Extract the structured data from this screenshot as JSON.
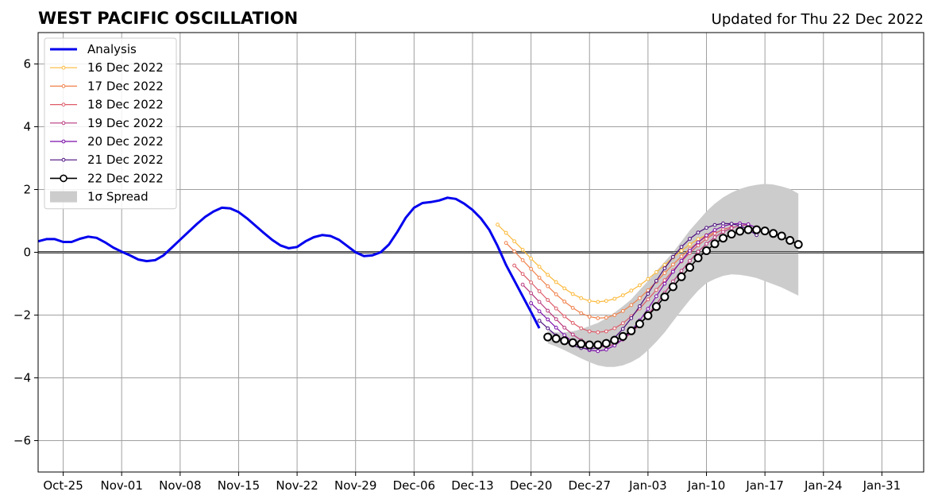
{
  "chart_data": {
    "type": "line",
    "title": "WEST PACIFIC OSCILLATION",
    "subtitle": "Updated for Thu 22 Dec 2022",
    "xlabel": "",
    "ylabel": "",
    "x_axis_type": "date",
    "xlim": [
      "2022-10-22",
      "2023-02-05"
    ],
    "ylim": [
      -7,
      7
    ],
    "y_ticks": [
      -6,
      -4,
      -2,
      0,
      2,
      4,
      6
    ],
    "x_ticks": [
      {
        "date": "2022-10-25",
        "label": "Oct-25"
      },
      {
        "date": "2022-11-01",
        "label": "Nov-01"
      },
      {
        "date": "2022-11-08",
        "label": "Nov-08"
      },
      {
        "date": "2022-11-15",
        "label": "Nov-15"
      },
      {
        "date": "2022-11-22",
        "label": "Nov-22"
      },
      {
        "date": "2022-11-29",
        "label": "Nov-29"
      },
      {
        "date": "2022-12-06",
        "label": "Dec-06"
      },
      {
        "date": "2022-12-13",
        "label": "Dec-13"
      },
      {
        "date": "2022-12-20",
        "label": "Dec-20"
      },
      {
        "date": "2022-12-27",
        "label": "Dec-27"
      },
      {
        "date": "2023-01-03",
        "label": "Jan-03"
      },
      {
        "date": "2023-01-10",
        "label": "Jan-10"
      },
      {
        "date": "2023-01-17",
        "label": "Jan-17"
      },
      {
        "date": "2023-01-24",
        "label": "Jan-24"
      },
      {
        "date": "2023-01-31",
        "label": "Jan-31"
      }
    ],
    "grid": true,
    "legend_position": "top-left",
    "series": [
      {
        "name": "Analysis",
        "color": "#0000ee",
        "kind": "analysis",
        "start": "2022-10-22",
        "values": [
          0.35,
          0.42,
          0.42,
          0.33,
          0.33,
          0.43,
          0.5,
          0.46,
          0.32,
          0.15,
          0.02,
          -0.1,
          -0.23,
          -0.28,
          -0.25,
          -0.1,
          0.15,
          0.4,
          0.65,
          0.9,
          1.13,
          1.3,
          1.42,
          1.4,
          1.28,
          1.08,
          0.85,
          0.62,
          0.4,
          0.22,
          0.13,
          0.17,
          0.35,
          0.48,
          0.55,
          0.52,
          0.4,
          0.2,
          0.0,
          -0.12,
          -0.1,
          0.0,
          0.25,
          0.65,
          1.1,
          1.42,
          1.57,
          1.6,
          1.65,
          1.74,
          1.7,
          1.55,
          1.35,
          1.08,
          0.72,
          0.2,
          -0.4,
          -0.9,
          -1.4,
          -1.9,
          -2.42
        ]
      },
      {
        "name": "16 Dec 2022",
        "color": "#fcb93a",
        "kind": "forecast",
        "start": "2022-12-16",
        "values": [
          0.88,
          0.62,
          0.35,
          0.08,
          -0.2,
          -0.46,
          -0.72,
          -0.95,
          -1.15,
          -1.33,
          -1.46,
          -1.55,
          -1.58,
          -1.55,
          -1.48,
          -1.37,
          -1.22,
          -1.05,
          -0.85,
          -0.63,
          -0.4,
          -0.17,
          0.05,
          0.25,
          0.42,
          0.55
        ]
      },
      {
        "name": "17 Dec 2022",
        "color": "#f0804a",
        "kind": "forecast",
        "start": "2022-12-17",
        "values": [
          0.3,
          0.03,
          -0.25,
          -0.53,
          -0.81,
          -1.08,
          -1.34,
          -1.57,
          -1.77,
          -1.94,
          -2.05,
          -2.1,
          -2.08,
          -2.0,
          -1.87,
          -1.68,
          -1.46,
          -1.21,
          -0.94,
          -0.66,
          -0.39,
          -0.13,
          0.11,
          0.32,
          0.5,
          0.64
        ]
      },
      {
        "name": "18 Dec 2022",
        "color": "#dc5a67",
        "kind": "forecast",
        "start": "2022-12-18",
        "values": [
          -0.42,
          -0.69,
          -0.96,
          -1.24,
          -1.52,
          -1.79,
          -2.04,
          -2.25,
          -2.42,
          -2.52,
          -2.55,
          -2.52,
          -2.42,
          -2.26,
          -2.04,
          -1.79,
          -1.5,
          -1.2,
          -0.89,
          -0.58,
          -0.29,
          -0.02,
          0.22,
          0.43,
          0.6,
          0.73,
          0.8
        ]
      },
      {
        "name": "19 Dec 2022",
        "color": "#b8377e",
        "kind": "forecast",
        "start": "2022-12-19",
        "values": [
          -1.03,
          -1.3,
          -1.58,
          -1.86,
          -2.13,
          -2.4,
          -2.62,
          -2.8,
          -2.93,
          -3.0,
          -3.0,
          -2.93,
          -2.78,
          -2.57,
          -2.3,
          -1.99,
          -1.65,
          -1.29,
          -0.93,
          -0.59,
          -0.27,
          0.02,
          0.27,
          0.48,
          0.65,
          0.77,
          0.85,
          0.88
        ]
      },
      {
        "name": "20 Dec 2022",
        "color": "#7b0ea9",
        "kind": "forecast",
        "start": "2022-12-20",
        "values": [
          -1.62,
          -1.88,
          -2.14,
          -2.4,
          -2.64,
          -2.86,
          -3.02,
          -3.12,
          -3.15,
          -3.1,
          -2.97,
          -2.77,
          -2.5,
          -2.17,
          -1.8,
          -1.4,
          -1.0,
          -0.62,
          -0.27,
          0.05,
          0.32,
          0.54,
          0.71,
          0.83,
          0.9,
          0.92,
          0.89,
          0.78
        ]
      },
      {
        "name": "21 Dec 2022",
        "color": "#4a0c7e",
        "kind": "forecast",
        "start": "2022-12-21",
        "values": [
          -2.18,
          -2.42,
          -2.65,
          -2.83,
          -2.97,
          -3.05,
          -3.08,
          -3.04,
          -2.92,
          -2.72,
          -2.44,
          -2.1,
          -1.72,
          -1.32,
          -0.91,
          -0.51,
          -0.15,
          0.17,
          0.43,
          0.63,
          0.78,
          0.87,
          0.92,
          0.91,
          0.85,
          0.72,
          0.55
        ]
      },
      {
        "name": "22 Dec 2022",
        "color": "#000000",
        "kind": "forecast-current",
        "start": "2022-12-22",
        "values": [
          -2.7,
          -2.75,
          -2.82,
          -2.88,
          -2.92,
          -2.95,
          -2.95,
          -2.9,
          -2.8,
          -2.68,
          -2.5,
          -2.28,
          -2.02,
          -1.73,
          -1.42,
          -1.1,
          -0.78,
          -0.48,
          -0.18,
          0.05,
          0.27,
          0.45,
          0.58,
          0.67,
          0.72,
          0.72,
          0.68,
          0.6,
          0.52,
          0.38,
          0.25
        ]
      }
    ],
    "spread": {
      "name": "1σ Spread",
      "color": "#cccccc",
      "start": "2022-12-22",
      "upper": [
        -2.5,
        -2.55,
        -2.55,
        -2.52,
        -2.45,
        -2.35,
        -2.25,
        -2.1,
        -1.92,
        -1.72,
        -1.5,
        -1.2,
        -0.92,
        -0.6,
        -0.3,
        0.0,
        0.35,
        0.7,
        1.0,
        1.3,
        1.55,
        1.75,
        1.9,
        2.02,
        2.1,
        2.15,
        2.18,
        2.16,
        2.1,
        2.02,
        1.87
      ],
      "lower": [
        -2.9,
        -3.0,
        -3.12,
        -3.25,
        -3.38,
        -3.5,
        -3.6,
        -3.65,
        -3.65,
        -3.6,
        -3.5,
        -3.35,
        -3.12,
        -2.85,
        -2.55,
        -2.2,
        -1.85,
        -1.52,
        -1.22,
        -0.98,
        -0.85,
        -0.75,
        -0.7,
        -0.72,
        -0.76,
        -0.82,
        -0.92,
        -1.02,
        -1.12,
        -1.25,
        -1.38
      ]
    }
  }
}
